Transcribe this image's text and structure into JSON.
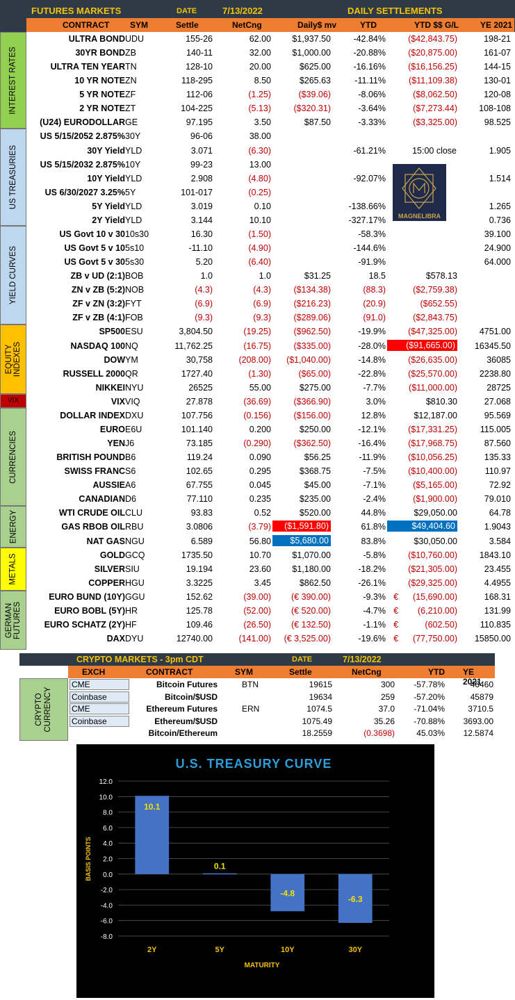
{
  "header": {
    "title": "FUTURES MARKETS",
    "date_label": "DATE",
    "date": "7/13/2022",
    "right_title": "DAILY SETTLEMENTS"
  },
  "columns": [
    "CONTRACT",
    "SYM",
    "Settle",
    "NetCng",
    "Daily$ mv",
    "YTD",
    "YTD $$ G/L",
    "YE 2021"
  ],
  "groups": [
    {
      "name": "INTEREST RATES",
      "color": "#92d050"
    },
    {
      "name": "US TREASURIES",
      "color": "#bdd7ee"
    },
    {
      "name": "YIELD CURVES",
      "color": "#bdd7ee"
    },
    {
      "name": "EQUITY INDEXES",
      "color": "#ffc000"
    },
    {
      "name": "VIX",
      "color": "#c00000"
    },
    {
      "name": "CURRENCIES",
      "color": "#a9d08e"
    },
    {
      "name": "ENERGY",
      "color": "#a9d08e"
    },
    {
      "name": "METALS",
      "color": "#ffff00"
    },
    {
      "name": "GERMAN FUTURES",
      "color": "#a9d08e"
    }
  ],
  "rows": [
    [
      "ULTRA BOND",
      "UDU",
      "155-26",
      "62.00",
      "$1,937.50",
      "-42.84%",
      "($42,843.75)",
      "198-21"
    ],
    [
      "30YR BOND",
      "ZB",
      "140-11",
      "32.00",
      "$1,000.00",
      "-20.88%",
      "($20,875.00)",
      "161-07"
    ],
    [
      "ULTRA TEN YEAR",
      "TN",
      "128-10",
      "20.00",
      "$625.00",
      "-16.16%",
      "($16,156.25)",
      "144-15"
    ],
    [
      "10 YR NOTE",
      "ZN",
      "118-295",
      "8.50",
      "$265.63",
      "-11.11%",
      "($11,109.38)",
      "130-01"
    ],
    [
      "5 YR NOTE",
      "ZF",
      "112-06",
      "(1.25)",
      "($39.06)",
      "-8.06%",
      "($8,062.50)",
      "120-08"
    ],
    [
      "2 YR NOTE",
      "ZT",
      "104-225",
      "(5.13)",
      "($320.31)",
      "-3.64%",
      "($7,273.44)",
      "108-108"
    ],
    [
      "(U24) EURODOLLAR",
      "GE",
      "97.195",
      "3.50",
      "$87.50",
      "-3.33%",
      "($3,325.00)",
      "98.525"
    ],
    [
      "US 5/15/2052 2.875%",
      "30Y",
      "96-06",
      "38.00",
      "",
      "",
      "",
      ""
    ],
    [
      "30Y Yield",
      "YLD",
      "3.071",
      "(6.30)",
      "",
      "-61.21%",
      "15:00 close",
      "1.905"
    ],
    [
      "US 5/15/2032 2.875%",
      "10Y",
      "99-23",
      "13.00",
      "",
      "",
      "",
      ""
    ],
    [
      "10Y Yield",
      "YLD",
      "2.908",
      "(4.80)",
      "",
      "-92.07%",
      "",
      "1.514"
    ],
    [
      "US 6/30/2027 3.25%",
      "5Y",
      "101-017",
      "(0.25)",
      "",
      "",
      "",
      ""
    ],
    [
      "5Y Yield",
      "YLD",
      "3.019",
      "0.10",
      "",
      "-138.66%",
      "",
      "1.265"
    ],
    [
      "2Y Yield",
      "YLD",
      "3.144",
      "10.10",
      "",
      "-327.17%",
      "",
      "0.736"
    ],
    [
      "US Govt 10 v 30",
      "10s30",
      "16.30",
      "(1.50)",
      "",
      "-58.3%",
      "",
      "39.100"
    ],
    [
      "US Govt 5 v 10",
      "5s10",
      "-11.10",
      "(4.90)",
      "",
      "-144.6%",
      "",
      "24.900"
    ],
    [
      "US Govt 5 v 30",
      "5s30",
      "5.20",
      "(6.40)",
      "",
      "-91.9%",
      "",
      "64.000"
    ],
    [
      "ZB v UD (2:1)",
      "BOB",
      "1.0",
      "1.0",
      "$31.25",
      "18.5",
      "$578.13",
      ""
    ],
    [
      "ZN v ZB (5:2)",
      "NOB",
      "(4.3)",
      "(4.3)",
      "($134.38)",
      "(88.3)",
      "($2,759.38)",
      ""
    ],
    [
      "ZF v ZN (3:2)",
      "FYT",
      "(6.9)",
      "(6.9)",
      "($216.23)",
      "(20.9)",
      "($652.55)",
      ""
    ],
    [
      "ZF v ZB (4:1)",
      "FOB",
      "(9.3)",
      "(9.3)",
      "($289.06)",
      "(91.0)",
      "($2,843.75)",
      ""
    ],
    [
      "SP500",
      "ESU",
      "3,804.50",
      "(19.25)",
      "($962.50)",
      "-19.9%",
      "($47,325.00)",
      "4751.00"
    ],
    [
      "NASDAQ 100",
      "NQ",
      "11,762.25",
      "(16.75)",
      "($335.00)",
      "-28.0%",
      "($91,665.00)",
      "16345.50"
    ],
    [
      "DOW",
      "YM",
      "30,758",
      "(208.00)",
      "($1,040.00)",
      "-14.8%",
      "($26,635.00)",
      "36085"
    ],
    [
      "RUSSELL 2000",
      "QR",
      "1727.40",
      "(1.30)",
      "($65.00)",
      "-22.8%",
      "($25,570.00)",
      "2238.80"
    ],
    [
      "NIKKEI",
      "NYU",
      "26525",
      "55.00",
      "$275.00",
      "-7.7%",
      "($11,000.00)",
      "28725"
    ],
    [
      "VIX",
      "VIQ",
      "27.878",
      "(36.69)",
      "($366.90)",
      "3.0%",
      "$810.30",
      "27.068"
    ],
    [
      "DOLLAR INDEX",
      "DXU",
      "107.756",
      "(0.156)",
      "($156.00)",
      "12.8%",
      "$12,187.00",
      "95.569"
    ],
    [
      "EURO",
      "E6U",
      "101.140",
      "0.200",
      "$250.00",
      "-12.1%",
      "($17,331.25)",
      "115.005"
    ],
    [
      "YEN",
      "J6",
      "73.185",
      "(0.290)",
      "($362.50)",
      "-16.4%",
      "($17,968.75)",
      "87.560"
    ],
    [
      "BRITISH POUND",
      "B6",
      "119.24",
      "0.090",
      "$56.25",
      "-11.9%",
      "($10,056.25)",
      "135.33"
    ],
    [
      "SWISS FRANC",
      "S6",
      "102.65",
      "0.295",
      "$368.75",
      "-7.5%",
      "($10,400.00)",
      "110.97"
    ],
    [
      "AUSSIE",
      "A6",
      "67.755",
      "0.045",
      "$45.00",
      "-7.1%",
      "($5,165.00)",
      "72.92"
    ],
    [
      "CANADIAN",
      "D6",
      "77.110",
      "0.235",
      "$235.00",
      "-2.4%",
      "($1,900.00)",
      "79.010"
    ],
    [
      "WTI CRUDE OIL",
      "CLU",
      "93.83",
      "0.52",
      "$520.00",
      "44.8%",
      "$29,050.00",
      "64.78"
    ],
    [
      "GAS RBOB OIL",
      "RBU",
      "3.0806",
      "(3.79)",
      "($1,591.80)",
      "61.8%",
      "$49,404.60",
      "1.9043"
    ],
    [
      "NAT GAS",
      "NGU",
      "6.589",
      "56.80",
      "$5,680.00",
      "83.8%",
      "$30,050.00",
      "3.584"
    ],
    [
      "GOLD",
      "GCQ",
      "1735.50",
      "10.70",
      "$1,070.00",
      "-5.8%",
      "($10,760.00)",
      "1843.10"
    ],
    [
      "SILVER",
      "SIU",
      "19.194",
      "23.60",
      "$1,180.00",
      "-18.2%",
      "($21,305.00)",
      "23.455"
    ],
    [
      "COPPER",
      "HGU",
      "3.3225",
      "3.45",
      "$862.50",
      "-26.1%",
      "($29,325.00)",
      "4.4955"
    ],
    [
      "EURO BUND (10Y)",
      "GGU",
      "152.62",
      "(39.00)",
      "(€ 390.00)",
      "-9.3%",
      "€      (15,690.00)",
      "168.31"
    ],
    [
      "EURO BOBL (5Y)",
      "HR",
      "125.78",
      "(52.00)",
      "(€ 520.00)",
      "-4.7%",
      "€        (6,210.00)",
      "131.99"
    ],
    [
      "EURO SCHATZ (2Y)",
      "HF",
      "109.46",
      "(26.50)",
      "(€ 132.50)",
      "-1.1%",
      "€           (602.50)",
      "110.835"
    ],
    [
      "DAX",
      "DYU",
      "12740.00",
      "(141.00)",
      "(€ 3,525.00)",
      "-19.6%",
      "€      (77,750.00)",
      "15850.00"
    ]
  ],
  "logo": {
    "text": "MAGNELIBRA"
  },
  "crypto": {
    "title": "CRYPTO MARKETS - 3pm CDT",
    "date_label": "DATE",
    "date": "7/13/2022",
    "columns": [
      "EXCH",
      "CONTRACT",
      "SYM",
      "Settle",
      "NetCng",
      "YTD",
      "YE 2021"
    ],
    "group": "CRYPTO CURRENCY",
    "rows": [
      [
        "CME",
        "Bitcoin Futures",
        "BTN",
        "19615",
        "300",
        "-57.78%",
        "46460"
      ],
      [
        "Coinbase",
        "Bitcoin/$USD",
        "",
        "19634",
        "259",
        "-57.20%",
        "45879"
      ],
      [
        "CME",
        "Ethereum Futures",
        "ERN",
        "1074.5",
        "37.0",
        "-71.04%",
        "3710.5"
      ],
      [
        "Coinbase",
        "Ethereum/$USD",
        "",
        "1075.49",
        "35.26",
        "-70.88%",
        "3693.00"
      ],
      [
        "",
        "Bitcoin/Ethereum",
        "",
        "18.2559",
        "(0.3698)",
        "45.03%",
        "12.5874"
      ]
    ]
  },
  "chart_data": {
    "type": "bar",
    "title": "U.S. TREASURY CURVE",
    "xlabel": "MATURITY",
    "ylabel": "BASIS POINTS",
    "categories": [
      "2Y",
      "5Y",
      "10Y",
      "30Y"
    ],
    "values": [
      10.1,
      0.1,
      -4.8,
      -6.3
    ],
    "ylim": [
      -8,
      12
    ],
    "yticks": [
      "12.0",
      "10.0",
      "8.0",
      "6.0",
      "4.0",
      "2.0",
      "0.0",
      "-2.0",
      "-4.0",
      "-6.0",
      "-8.0"
    ],
    "grid": true,
    "bar_color": "#4472c4"
  }
}
